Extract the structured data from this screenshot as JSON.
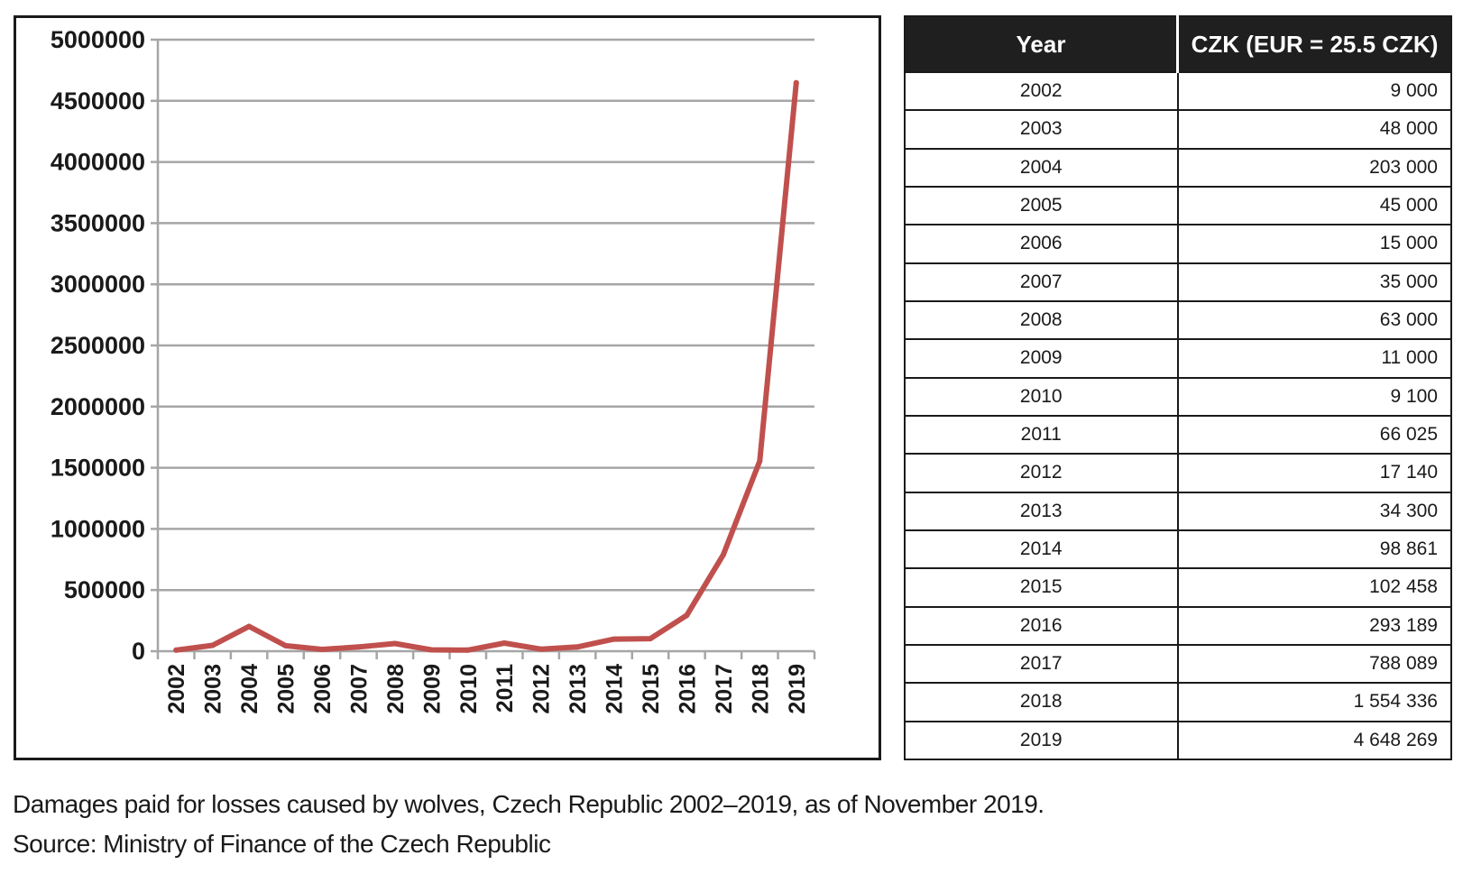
{
  "chart_data": {
    "type": "line",
    "x": [
      "2002",
      "2003",
      "2004",
      "2005",
      "2006",
      "2007",
      "2008",
      "2009",
      "2010",
      "2011",
      "2012",
      "2013",
      "2014",
      "2015",
      "2016",
      "2017",
      "2018",
      "2019"
    ],
    "series": [
      {
        "values": [
          9000,
          48000,
          203000,
          45000,
          15000,
          35000,
          63000,
          11000,
          9100,
          66025,
          17140,
          34300,
          98861,
          102458,
          293189,
          788089,
          1554336,
          4648269
        ]
      }
    ],
    "yticks": [
      "0",
      "500000",
      "1000000",
      "1500000",
      "2000000",
      "2500000",
      "3000000",
      "3500000",
      "4000000",
      "4500000",
      "5000000"
    ],
    "ylim": [
      0,
      5000000
    ],
    "grid": true,
    "legend": "none",
    "line_color": "#c0504d"
  },
  "table": {
    "headers": {
      "year": "Year",
      "czk": "CZK (EUR = 25.5 CZK)"
    },
    "rows": [
      {
        "year": "2002",
        "value": "9 000"
      },
      {
        "year": "2003",
        "value": "48 000"
      },
      {
        "year": "2004",
        "value": "203 000"
      },
      {
        "year": "2005",
        "value": "45 000"
      },
      {
        "year": "2006",
        "value": "15 000"
      },
      {
        "year": "2007",
        "value": "35 000"
      },
      {
        "year": "2008",
        "value": "63 000"
      },
      {
        "year": "2009",
        "value": "11 000"
      },
      {
        "year": "2010",
        "value": "9 100"
      },
      {
        "year": "2011",
        "value": "66 025"
      },
      {
        "year": "2012",
        "value": "17 140"
      },
      {
        "year": "2013",
        "value": "34 300"
      },
      {
        "year": "2014",
        "value": "98 861"
      },
      {
        "year": "2015",
        "value": "102 458"
      },
      {
        "year": "2016",
        "value": "293 189"
      },
      {
        "year": "2017",
        "value": "788 089"
      },
      {
        "year": "2018",
        "value": "1 554 336"
      },
      {
        "year": "2019",
        "value": "4 648 269"
      }
    ]
  },
  "caption": {
    "line1": "Damages paid for losses caused by wolves, Czech Republic 2002–2019, as of November 2019.",
    "line2": "Source: Ministry of Finance of the Czech Republic"
  }
}
